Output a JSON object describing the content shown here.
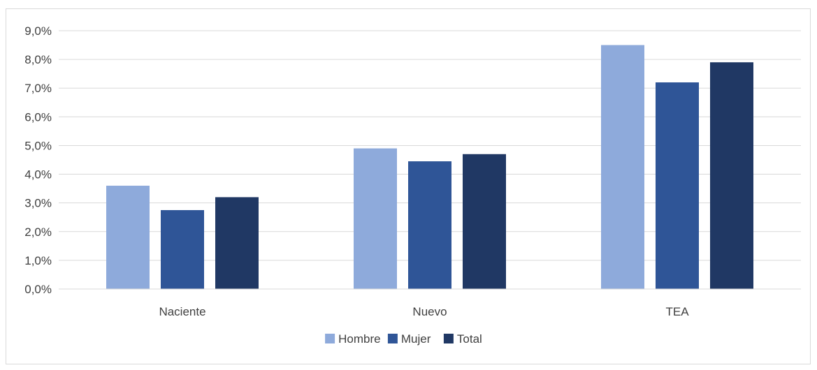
{
  "chart_data": {
    "type": "bar",
    "categories": [
      "Naciente",
      "Nuevo",
      "TEA"
    ],
    "series": [
      {
        "name": "Hombre",
        "values": [
          3.6,
          4.9,
          8.5
        ],
        "color": "#8eaadb"
      },
      {
        "name": "Mujer",
        "values": [
          2.75,
          4.45,
          7.2
        ],
        "color": "#2f5597"
      },
      {
        "name": "Total",
        "values": [
          3.2,
          4.7,
          7.9
        ],
        "color": "#203864"
      }
    ],
    "ylim": [
      0,
      9
    ],
    "yticks": [
      "0,0%",
      "1,0%",
      "2,0%",
      "3,0%",
      "4,0%",
      "5,0%",
      "6,0%",
      "7,0%",
      "8,0%",
      "9,0%"
    ],
    "grid": true,
    "legend_position": "bottom",
    "title": "",
    "xlabel": "",
    "ylabel": ""
  }
}
